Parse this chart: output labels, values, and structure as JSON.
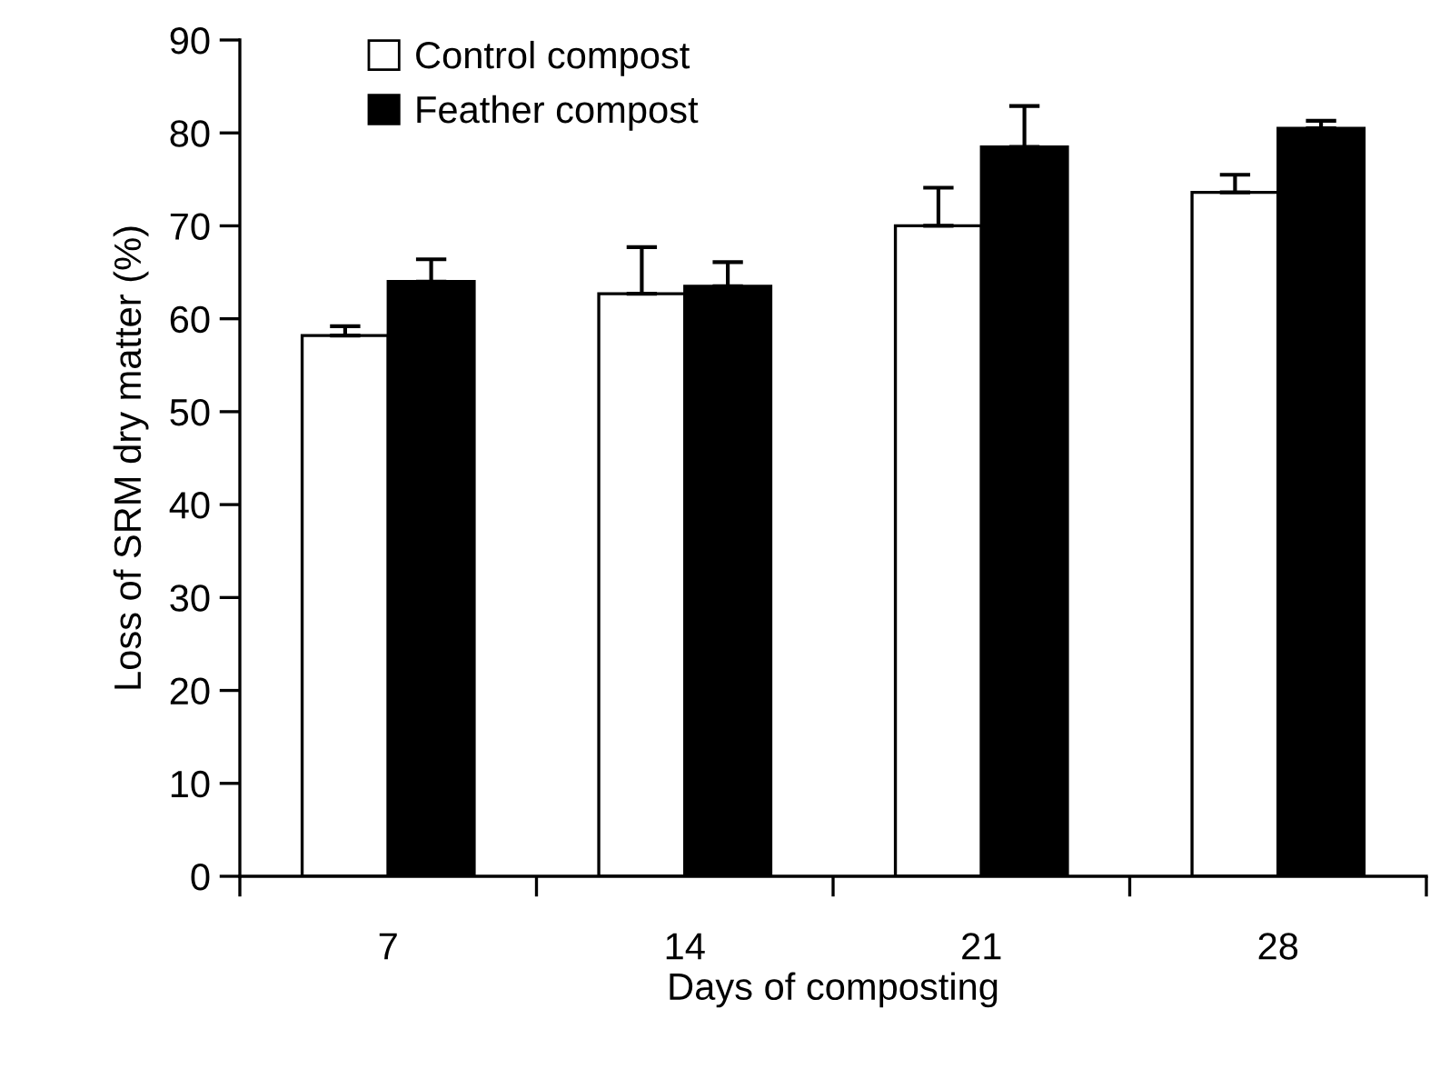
{
  "chart_data": {
    "type": "bar",
    "xlabel": "Days of composting",
    "ylabel": "Loss of SRM dry matter (%)",
    "categories": [
      "7",
      "14",
      "21",
      "28"
    ],
    "series": [
      {
        "name": "Control compost",
        "color": "#ffffff",
        "values": [
          58.2,
          62.7,
          70.0,
          73.6
        ],
        "errors": [
          1.0,
          5.0,
          4.1,
          1.9
        ]
      },
      {
        "name": "Feather compost",
        "color": "#000000",
        "values": [
          64.0,
          63.5,
          78.5,
          80.5
        ],
        "errors": [
          2.4,
          2.6,
          4.4,
          0.8
        ]
      }
    ],
    "ylim": [
      0,
      90
    ],
    "yticks": [
      0,
      10,
      20,
      30,
      40,
      50,
      60,
      70,
      80,
      90
    ],
    "grid": false,
    "legend": "top left"
  }
}
